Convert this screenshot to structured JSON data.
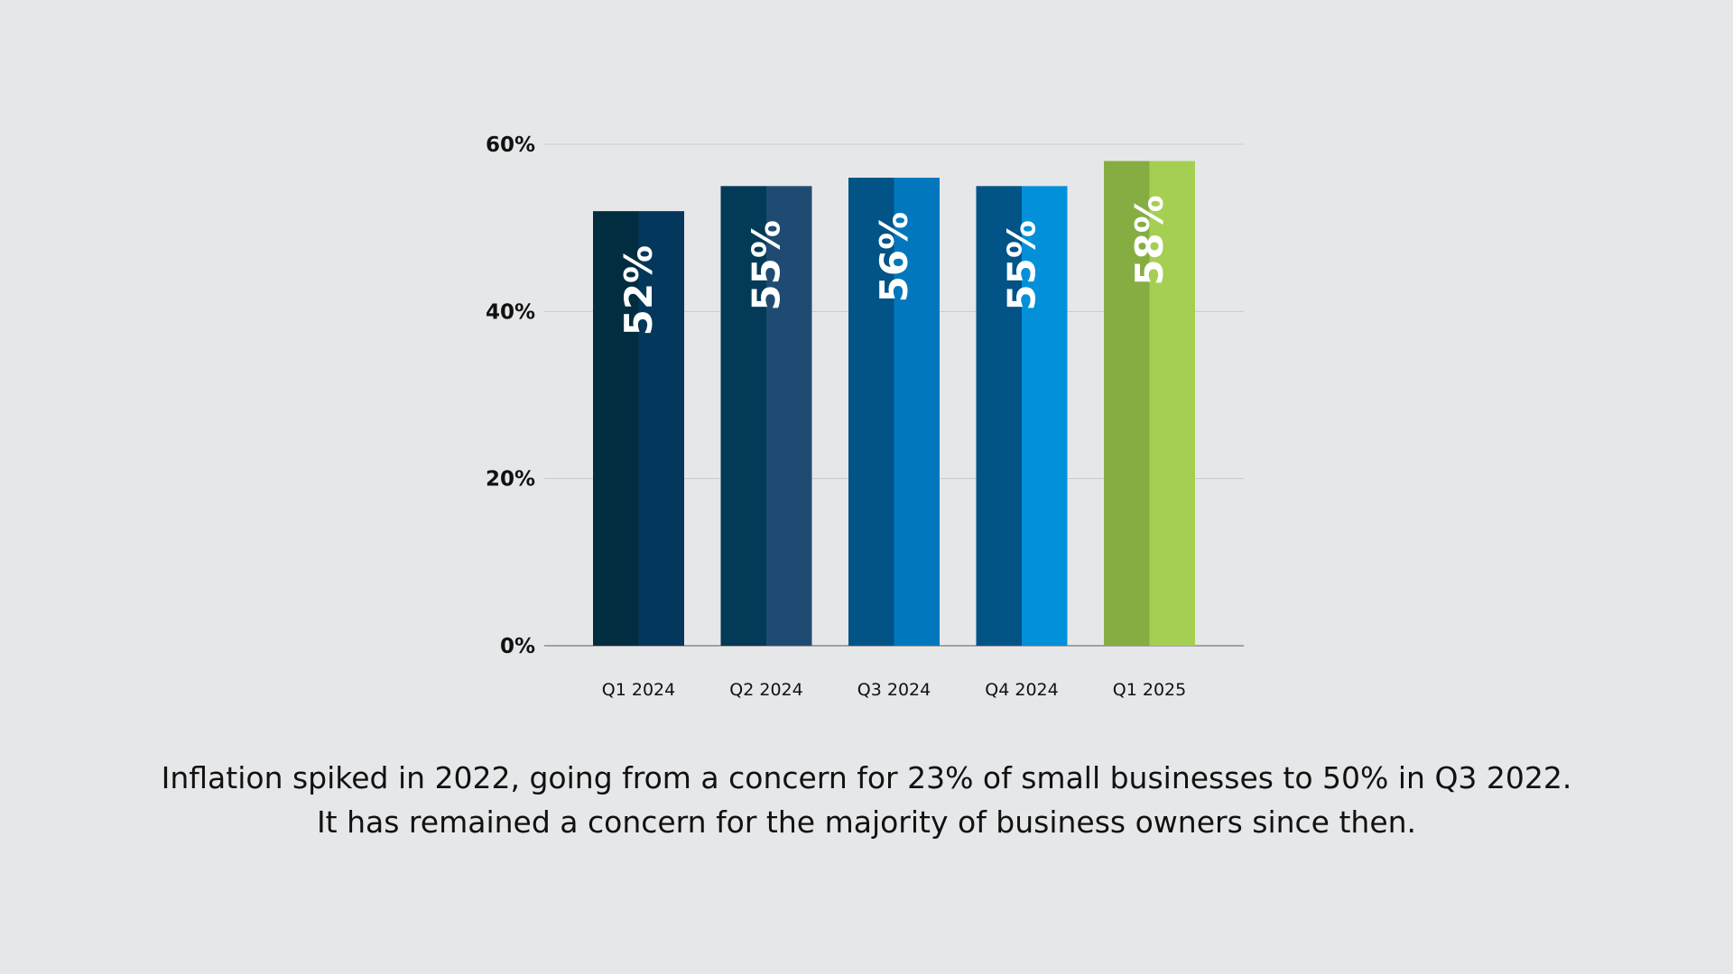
{
  "chart_data": {
    "type": "bar",
    "categories": [
      "Q1 2024",
      "Q2 2024",
      "Q3 2024",
      "Q4 2024",
      "Q1 2025"
    ],
    "values": [
      52,
      55,
      56,
      55,
      58
    ],
    "value_labels": [
      "52%",
      "55%",
      "56%",
      "55%",
      "58%"
    ],
    "yticks": [
      0,
      20,
      40,
      60
    ],
    "ytick_labels": [
      "0%",
      "20%",
      "40%",
      "60%"
    ],
    "ylim": [
      0,
      60
    ],
    "grid": true,
    "legend": "none",
    "bar_colors": [
      {
        "dark": "#022d41",
        "light": "#03375c"
      },
      {
        "dark": "#023a58",
        "light": "#1f4b73"
      },
      {
        "dark": "#025386",
        "light": "#0277bd"
      },
      {
        "dark": "#025386",
        "light": "#0291d9"
      },
      {
        "dark": "#86ad42",
        "light": "#a5cf52"
      }
    ]
  },
  "caption": {
    "line1": "Inflation spiked in 2022, going from a concern for 23% of small businesses to 50% in Q3 2022.",
    "line2": "It has remained a concern for the majority of business owners since then."
  },
  "colors": {
    "background": "#e6e7e9",
    "gridline": "#c9cacc",
    "axis": "#8a8a8a",
    "text": "#111111",
    "bar_label": "#ffffff"
  }
}
